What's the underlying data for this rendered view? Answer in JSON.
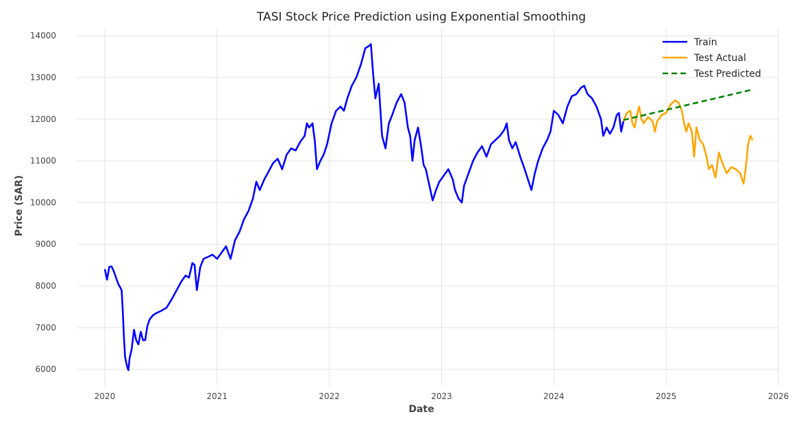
{
  "chart_data": {
    "type": "line",
    "title": "TASI Stock Price Prediction using Exponential Smoothing",
    "xlabel": "Date",
    "ylabel": "Price (SAR)",
    "xlim": [
      2019.75,
      2026.0
    ],
    "ylim": [
      5600,
      14200
    ],
    "x_ticks": [
      "2020",
      "2021",
      "2022",
      "2023",
      "2024",
      "2025",
      "2026"
    ],
    "y_ticks": [
      "6000",
      "7000",
      "8000",
      "9000",
      "10000",
      "11000",
      "12000",
      "13000",
      "14000"
    ],
    "grid": true,
    "legend_position": "top-right",
    "series": [
      {
        "name": "Train",
        "color": "#0000ff",
        "style": "solid",
        "points": [
          [
            2020.0,
            8400
          ],
          [
            2020.02,
            8150
          ],
          [
            2020.04,
            8460
          ],
          [
            2020.06,
            8470
          ],
          [
            2020.08,
            8350
          ],
          [
            2020.1,
            8200
          ],
          [
            2020.12,
            8050
          ],
          [
            2020.14,
            7950
          ],
          [
            2020.15,
            7900
          ],
          [
            2020.16,
            7400
          ],
          [
            2020.17,
            6800
          ],
          [
            2020.18,
            6300
          ],
          [
            2020.2,
            6050
          ],
          [
            2020.21,
            5980
          ],
          [
            2020.22,
            6250
          ],
          [
            2020.24,
            6500
          ],
          [
            2020.26,
            6950
          ],
          [
            2020.28,
            6700
          ],
          [
            2020.3,
            6600
          ],
          [
            2020.32,
            6900
          ],
          [
            2020.34,
            6700
          ],
          [
            2020.36,
            6700
          ],
          [
            2020.38,
            7050
          ],
          [
            2020.4,
            7200
          ],
          [
            2020.43,
            7300
          ],
          [
            2020.46,
            7350
          ],
          [
            2020.5,
            7400
          ],
          [
            2020.55,
            7480
          ],
          [
            2020.6,
            7700
          ],
          [
            2020.64,
            7900
          ],
          [
            2020.68,
            8100
          ],
          [
            2020.72,
            8250
          ],
          [
            2020.75,
            8200
          ],
          [
            2020.78,
            8550
          ],
          [
            2020.8,
            8500
          ],
          [
            2020.82,
            7900
          ],
          [
            2020.85,
            8450
          ],
          [
            2020.88,
            8650
          ],
          [
            2020.92,
            8700
          ],
          [
            2020.96,
            8750
          ],
          [
            2021.0,
            8650
          ],
          [
            2021.04,
            8800
          ],
          [
            2021.08,
            8950
          ],
          [
            2021.12,
            8650
          ],
          [
            2021.16,
            9100
          ],
          [
            2021.2,
            9300
          ],
          [
            2021.24,
            9600
          ],
          [
            2021.28,
            9800
          ],
          [
            2021.32,
            10100
          ],
          [
            2021.35,
            10500
          ],
          [
            2021.38,
            10300
          ],
          [
            2021.42,
            10550
          ],
          [
            2021.46,
            10750
          ],
          [
            2021.5,
            10950
          ],
          [
            2021.54,
            11050
          ],
          [
            2021.58,
            10800
          ],
          [
            2021.62,
            11150
          ],
          [
            2021.66,
            11300
          ],
          [
            2021.7,
            11250
          ],
          [
            2021.74,
            11450
          ],
          [
            2021.78,
            11600
          ],
          [
            2021.8,
            11900
          ],
          [
            2021.82,
            11800
          ],
          [
            2021.85,
            11900
          ],
          [
            2021.87,
            11500
          ],
          [
            2021.89,
            10800
          ],
          [
            2021.92,
            11000
          ],
          [
            2021.95,
            11150
          ],
          [
            2021.98,
            11400
          ],
          [
            2022.02,
            11900
          ],
          [
            2022.06,
            12200
          ],
          [
            2022.1,
            12300
          ],
          [
            2022.13,
            12200
          ],
          [
            2022.16,
            12500
          ],
          [
            2022.2,
            12800
          ],
          [
            2022.24,
            13000
          ],
          [
            2022.28,
            13300
          ],
          [
            2022.32,
            13700
          ],
          [
            2022.35,
            13750
          ],
          [
            2022.37,
            13800
          ],
          [
            2022.39,
            13100
          ],
          [
            2022.41,
            12500
          ],
          [
            2022.44,
            12850
          ],
          [
            2022.47,
            11600
          ],
          [
            2022.5,
            11300
          ],
          [
            2022.53,
            11900
          ],
          [
            2022.56,
            12100
          ],
          [
            2022.6,
            12400
          ],
          [
            2022.64,
            12600
          ],
          [
            2022.67,
            12400
          ],
          [
            2022.7,
            11800
          ],
          [
            2022.72,
            11600
          ],
          [
            2022.74,
            11000
          ],
          [
            2022.76,
            11500
          ],
          [
            2022.79,
            11800
          ],
          [
            2022.82,
            11300
          ],
          [
            2022.84,
            10900
          ],
          [
            2022.86,
            10800
          ],
          [
            2022.88,
            10550
          ],
          [
            2022.9,
            10300
          ],
          [
            2022.92,
            10050
          ],
          [
            2022.95,
            10300
          ],
          [
            2022.98,
            10500
          ],
          [
            2023.02,
            10650
          ],
          [
            2023.06,
            10800
          ],
          [
            2023.1,
            10550
          ],
          [
            2023.12,
            10300
          ],
          [
            2023.15,
            10100
          ],
          [
            2023.18,
            10000
          ],
          [
            2023.2,
            10400
          ],
          [
            2023.24,
            10700
          ],
          [
            2023.28,
            11000
          ],
          [
            2023.32,
            11200
          ],
          [
            2023.36,
            11350
          ],
          [
            2023.4,
            11100
          ],
          [
            2023.44,
            11400
          ],
          [
            2023.48,
            11500
          ],
          [
            2023.52,
            11600
          ],
          [
            2023.56,
            11750
          ],
          [
            2023.58,
            11900
          ],
          [
            2023.6,
            11500
          ],
          [
            2023.63,
            11300
          ],
          [
            2023.66,
            11450
          ],
          [
            2023.7,
            11100
          ],
          [
            2023.74,
            10800
          ],
          [
            2023.77,
            10550
          ],
          [
            2023.8,
            10300
          ],
          [
            2023.83,
            10700
          ],
          [
            2023.86,
            11000
          ],
          [
            2023.9,
            11300
          ],
          [
            2023.94,
            11500
          ],
          [
            2023.97,
            11700
          ],
          [
            2024.0,
            12200
          ],
          [
            2024.04,
            12100
          ],
          [
            2024.08,
            11900
          ],
          [
            2024.12,
            12300
          ],
          [
            2024.16,
            12550
          ],
          [
            2024.2,
            12600
          ],
          [
            2024.24,
            12750
          ],
          [
            2024.27,
            12800
          ],
          [
            2024.3,
            12600
          ],
          [
            2024.34,
            12500
          ],
          [
            2024.38,
            12300
          ],
          [
            2024.42,
            12000
          ],
          [
            2024.44,
            11600
          ],
          [
            2024.47,
            11800
          ],
          [
            2024.5,
            11650
          ],
          [
            2024.53,
            11800
          ],
          [
            2024.56,
            12100
          ],
          [
            2024.58,
            12150
          ],
          [
            2024.6,
            11700
          ],
          [
            2024.62,
            11950
          ]
        ]
      },
      {
        "name": "Test Actual",
        "color": "#ffa500",
        "style": "solid",
        "points": [
          [
            2024.62,
            11950
          ],
          [
            2024.65,
            12150
          ],
          [
            2024.68,
            12200
          ],
          [
            2024.7,
            11900
          ],
          [
            2024.72,
            11800
          ],
          [
            2024.74,
            12100
          ],
          [
            2024.76,
            12300
          ],
          [
            2024.78,
            12000
          ],
          [
            2024.8,
            11900
          ],
          [
            2024.84,
            12050
          ],
          [
            2024.88,
            11950
          ],
          [
            2024.9,
            11700
          ],
          [
            2024.92,
            11950
          ],
          [
            2024.96,
            12100
          ],
          [
            2025.0,
            12150
          ],
          [
            2025.04,
            12350
          ],
          [
            2025.08,
            12450
          ],
          [
            2025.11,
            12400
          ],
          [
            2025.14,
            12200
          ],
          [
            2025.16,
            11900
          ],
          [
            2025.18,
            11700
          ],
          [
            2025.2,
            11900
          ],
          [
            2025.23,
            11700
          ],
          [
            2025.25,
            11100
          ],
          [
            2025.27,
            11800
          ],
          [
            2025.3,
            11500
          ],
          [
            2025.33,
            11400
          ],
          [
            2025.36,
            11100
          ],
          [
            2025.38,
            10800
          ],
          [
            2025.41,
            10900
          ],
          [
            2025.44,
            10600
          ],
          [
            2025.47,
            11200
          ],
          [
            2025.5,
            10950
          ],
          [
            2025.54,
            10700
          ],
          [
            2025.58,
            10850
          ],
          [
            2025.62,
            10800
          ],
          [
            2025.66,
            10700
          ],
          [
            2025.69,
            10450
          ],
          [
            2025.71,
            10850
          ],
          [
            2025.73,
            11400
          ],
          [
            2025.75,
            11600
          ],
          [
            2025.77,
            11500
          ]
        ]
      },
      {
        "name": "Test Predicted",
        "color": "#008000",
        "style": "dashed",
        "points": [
          [
            2024.62,
            11980
          ],
          [
            2025.77,
            12710
          ]
        ]
      }
    ]
  }
}
